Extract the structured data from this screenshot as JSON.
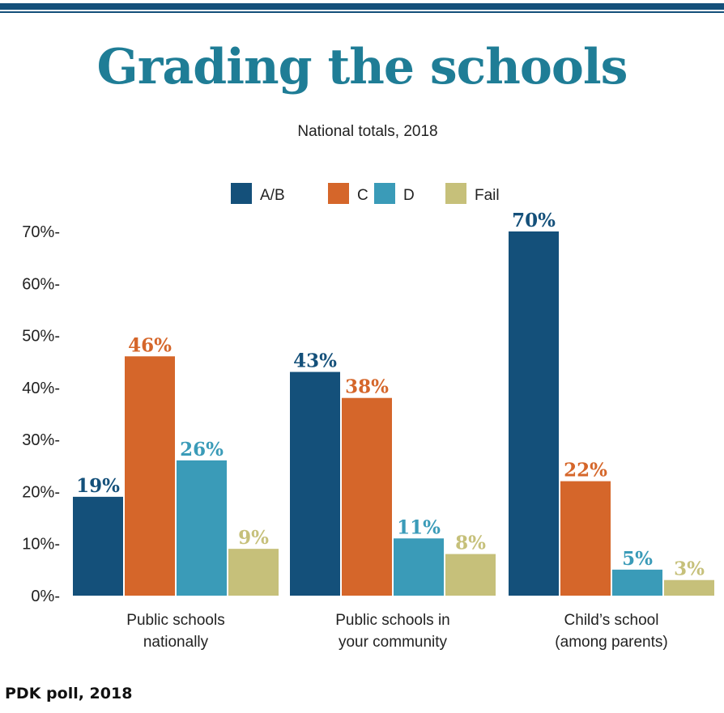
{
  "chart_data": {
    "type": "bar",
    "title": "Grading the schools",
    "subtitle": "National totals, 2018",
    "source": "PDK poll, 2018",
    "categories": [
      [
        "Public schools",
        "nationally"
      ],
      [
        "Public schools in",
        "your community"
      ],
      [
        "Child’s school",
        "(among parents)"
      ]
    ],
    "series": [
      {
        "name": "A/B",
        "color": "#14507a",
        "values": [
          19,
          43,
          70
        ]
      },
      {
        "name": "C",
        "color": "#d5662a",
        "values": [
          46,
          38,
          22
        ]
      },
      {
        "name": "D",
        "color": "#3a9bb8",
        "values": [
          26,
          11,
          5
        ]
      },
      {
        "name": "Fail",
        "color": "#c6c07a",
        "values": [
          9,
          8,
          3
        ]
      }
    ],
    "value_suffix": "%",
    "ylim": [
      0,
      70
    ],
    "yticks": [
      "0%-",
      "10%-",
      "20%-",
      "30%-",
      "40%-",
      "50%-",
      "60%-",
      "70%-"
    ],
    "legend_position": "top",
    "grid": false
  }
}
